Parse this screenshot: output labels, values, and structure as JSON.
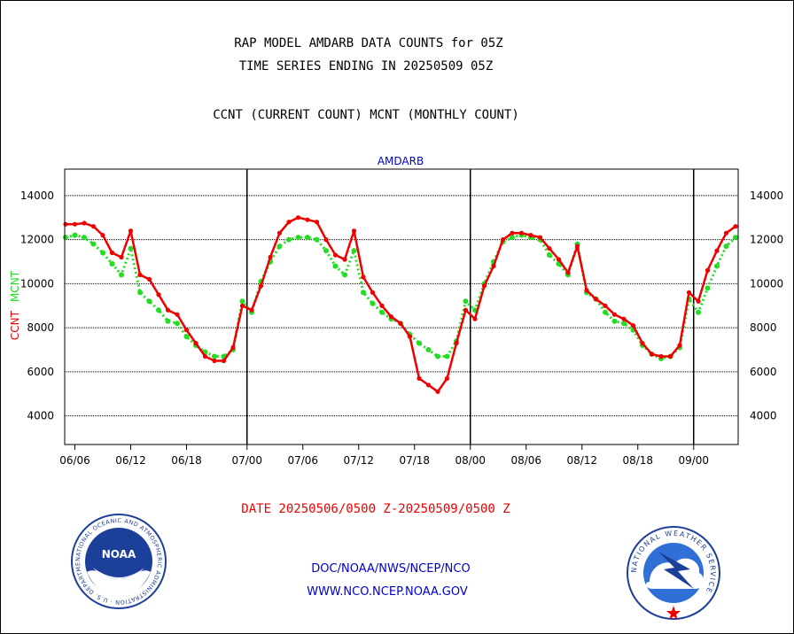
{
  "header": {
    "line1": "RAP MODEL AMDARB DATA COUNTS for 05Z",
    "line2": "TIME SERIES ENDING IN 20250509 05Z",
    "line3": "CCNT (CURRENT COUNT) MCNT (MONTHLY COUNT)"
  },
  "chart_data": {
    "type": "line",
    "title": "AMDARB",
    "ylabel_ccnt": "CCNT",
    "ylabel_mcnt": "MCNT",
    "ylim": [
      2700,
      15200
    ],
    "yticks": [
      4000,
      6000,
      8000,
      10000,
      12000,
      14000
    ],
    "ytick_labels": [
      "4000",
      "6000",
      "8000",
      "10000",
      "12000",
      "14000"
    ],
    "xlim": [
      0,
      73
    ],
    "xticks": [
      {
        "x": 1,
        "label": "06/06"
      },
      {
        "x": 7,
        "label": "06/12"
      },
      {
        "x": 13,
        "label": "06/18"
      },
      {
        "x": 19.5,
        "label": "07/00"
      },
      {
        "x": 25.5,
        "label": "07/06"
      },
      {
        "x": 31.5,
        "label": "07/12"
      },
      {
        "x": 37.5,
        "label": "07/18"
      },
      {
        "x": 43.5,
        "label": "08/00"
      },
      {
        "x": 49.5,
        "label": "08/06"
      },
      {
        "x": 55.5,
        "label": "08/12"
      },
      {
        "x": 61.5,
        "label": "08/18"
      },
      {
        "x": 67.5,
        "label": "09/00"
      }
    ],
    "day_boundaries": [
      19.5,
      43.5,
      67.5
    ],
    "grid": true,
    "series": [
      {
        "name": "CCNT",
        "color": "#ee0000",
        "values": [
          12700,
          12700,
          12750,
          12600,
          12200,
          11400,
          11200,
          12400,
          10400,
          10200,
          9500,
          8800,
          8600,
          7900,
          7300,
          6700,
          6500,
          6500,
          7100,
          9000,
          8800,
          9900,
          11200,
          12300,
          12800,
          13000,
          12900,
          12800,
          12000,
          11300,
          11100,
          12400,
          10300,
          9600,
          9000,
          8500,
          8200,
          7600,
          5700,
          5400,
          5100,
          5700,
          7300,
          8800,
          8400,
          9900,
          10800,
          12000,
          12300,
          12300,
          12200,
          12100,
          11600,
          11100,
          10500,
          11700,
          9700,
          9300,
          9000,
          8600,
          8400,
          8100,
          7300,
          6800,
          6700,
          6700,
          7200,
          9600,
          9200,
          10600,
          11500,
          12300,
          12600
        ]
      },
      {
        "name": "MCNT",
        "color": "#22dd22",
        "values": [
          12100,
          12200,
          12100,
          11800,
          11400,
          10900,
          10400,
          11600,
          9600,
          9200,
          8800,
          8300,
          8200,
          7600,
          7200,
          6900,
          6700,
          6700,
          7000,
          9200,
          8700,
          10100,
          11000,
          11700,
          12000,
          12100,
          12100,
          12000,
          11500,
          10800,
          10400,
          11500,
          9600,
          9100,
          8700,
          8400,
          8200,
          7700,
          7300,
          7000,
          6700,
          6700,
          7400,
          9200,
          8800,
          10000,
          11000,
          11900,
          12100,
          12200,
          12100,
          12000,
          11300,
          10900,
          10400,
          11800,
          9600,
          9300,
          8700,
          8300,
          8200,
          7900,
          7200,
          6800,
          6600,
          6700,
          7100,
          9300,
          8700,
          9800,
          10800,
          11700,
          12100
        ]
      }
    ],
    "footer": {
      "date_range": "DATE 20250506/0500 Z-20250509/0500 Z",
      "link1": "DOC/NOAA/NWS/NCEP/NCO",
      "link2": "WWW.NCO.NCEP.NOAA.GOV"
    }
  },
  "logos": {
    "noaa_center": "NOAA",
    "noaa_ring": "NATIONAL OCEANIC AND ATMOSPHERIC ADMINISTRATION · U.S. DEPARTMENT OF COMMERCE",
    "nws_ring": "NATIONAL WEATHER SERVICE"
  },
  "colors": {
    "title_blue": "#0000cc",
    "ccnt_red": "#ee0000",
    "mcnt_green": "#22dd22",
    "noaa_blue": "#1c3f9a",
    "nws_blue": "#2f6fd6"
  }
}
